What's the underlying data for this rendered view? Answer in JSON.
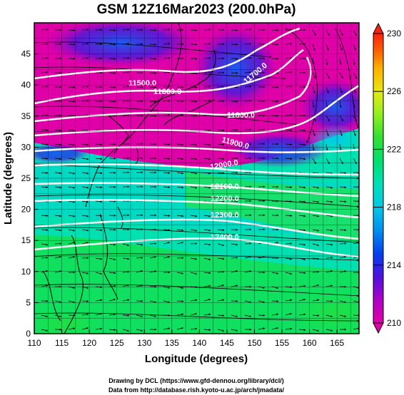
{
  "title": "GSM 12Z16Mar2023 (200.0hPa)",
  "x_axis": {
    "label": "Longitude (degrees)",
    "min": 110,
    "max": 169,
    "ticks": [
      "110",
      "115",
      "120",
      "125",
      "130",
      "135",
      "140",
      "145",
      "150",
      "155",
      "160",
      "165"
    ]
  },
  "y_axis": {
    "label": "Latitude (degrees)",
    "min": 0,
    "max": 50,
    "ticks": [
      "0",
      "5",
      "10",
      "15",
      "20",
      "25",
      "30",
      "35",
      "40",
      "45"
    ]
  },
  "colorbar": {
    "min": 210,
    "max": 230,
    "ticks": [
      "210",
      "214",
      "218",
      "222",
      "226",
      "230"
    ],
    "colors": [
      "#e000a8",
      "#b000c8",
      "#5010e0",
      "#0040f0",
      "#0090f0",
      "#00c8e8",
      "#00e0b8",
      "#00e070",
      "#30e030",
      "#90f020",
      "#e8e810",
      "#ffb000",
      "#ff6000",
      "#ff2010"
    ]
  },
  "contour_labels": [
    {
      "text": "11500.0"
    },
    {
      "text": "11600.0"
    },
    {
      "text": "11700.0"
    },
    {
      "text": "11800.0"
    },
    {
      "text": "11900.0"
    },
    {
      "text": "12000.0"
    },
    {
      "text": "12100.0"
    },
    {
      "text": "12200.0"
    },
    {
      "text": "12300.0"
    },
    {
      "text": "12400.0"
    }
  ],
  "credits": {
    "line1": "Drawing by DCL (https://www.gfd-dennou.org/library/dcl/)",
    "line2": "Data from http://database.rish.kyoto-u.ac.jp/arch/jmadata/"
  }
}
